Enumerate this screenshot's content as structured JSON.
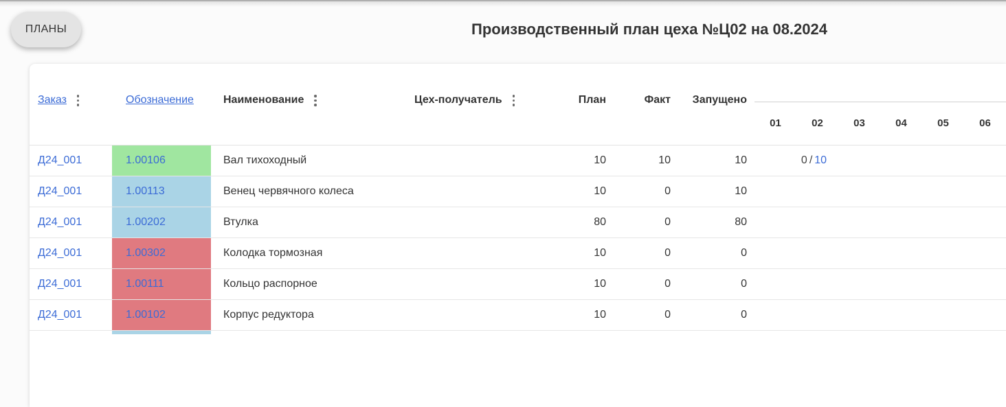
{
  "header": {
    "plans_button": "ПЛАНЫ",
    "title": "Производственный план цеха №Ц02 на 08.2024"
  },
  "table": {
    "columns": {
      "order": "Заказ",
      "designation": "Обозначение",
      "name": "Наименование",
      "recipient_shop": "Цех-получатель",
      "plan": "План",
      "fact": "Факт",
      "launched": "Запущено"
    },
    "day_columns": {
      "d1": "01",
      "d2": "02",
      "d3": "03",
      "d4": "04",
      "d5": "05",
      "d6": "06"
    },
    "rows": [
      {
        "order": "Д24_001",
        "designation": "1.00106",
        "status_color": "#a0e6a0",
        "name": "Вал тихоходный",
        "recipient_shop": "",
        "plan": "10",
        "fact": "10",
        "launched": "10",
        "day_progress": {
          "day": "02",
          "fact": "0",
          "separator": "/",
          "plan": "10"
        }
      },
      {
        "order": "Д24_001",
        "designation": "1.00113",
        "status_color": "#aad4e6",
        "name": "Венец червячного колеса",
        "recipient_shop": "",
        "plan": "10",
        "fact": "0",
        "launched": "10"
      },
      {
        "order": "Д24_001",
        "designation": "1.00202",
        "status_color": "#aad4e6",
        "name": "Втулка",
        "recipient_shop": "",
        "plan": "80",
        "fact": "0",
        "launched": "80"
      },
      {
        "order": "Д24_001",
        "designation": "1.00302",
        "status_color": "#e07a80",
        "name": "Колодка тормозная",
        "recipient_shop": "",
        "plan": "10",
        "fact": "0",
        "launched": "0"
      },
      {
        "order": "Д24_001",
        "designation": "1.00111",
        "status_color": "#e07a80",
        "name": "Кольцо распорное",
        "recipient_shop": "",
        "plan": "10",
        "fact": "0",
        "launched": "0"
      },
      {
        "order": "Д24_001",
        "designation": "1.00102",
        "status_color": "#e07a80",
        "name": "Корпус редуктора",
        "recipient_shop": "",
        "plan": "10",
        "fact": "0",
        "launched": "0"
      }
    ],
    "partial_next_row": {
      "status_color": "#aad4e6"
    }
  },
  "colors": {
    "link_blue": "#3b6bd6",
    "status_green": "#a0e6a0",
    "status_blue": "#aad4e6",
    "status_red": "#e07a80"
  },
  "icons": {
    "column_menu": "vertical-kebab-dots"
  }
}
